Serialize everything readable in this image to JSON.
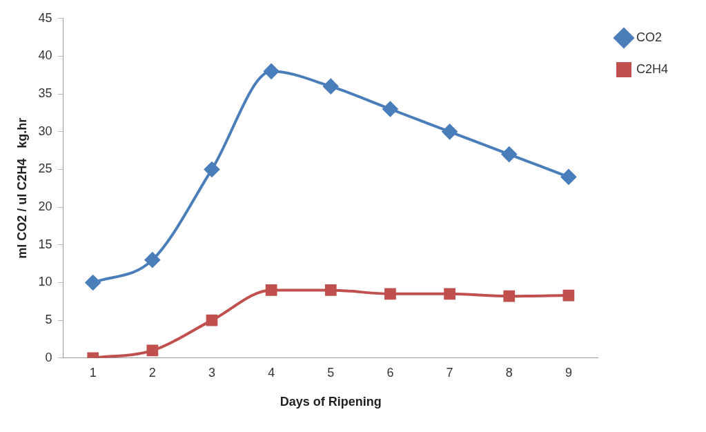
{
  "chart_data": {
    "type": "line",
    "xlabel": "Days of Ripening",
    "ylabel": "ml CO2 / ul C2H4   kg.hr",
    "categories": [
      "1",
      "2",
      "3",
      "4",
      "5",
      "6",
      "7",
      "8",
      "9"
    ],
    "series": [
      {
        "name": "CO2",
        "color": "#4a7ebb",
        "marker": "diamond",
        "values": [
          10,
          13,
          25,
          38,
          36,
          33,
          30,
          27,
          24
        ]
      },
      {
        "name": "C2H4",
        "color": "#c0504d",
        "marker": "square",
        "values": [
          0,
          1,
          5,
          9,
          9,
          8.5,
          8.5,
          8.2,
          8.3
        ]
      }
    ],
    "ylim": [
      0,
      45
    ],
    "yticks": [
      0,
      5,
      10,
      15,
      20,
      25,
      30,
      35,
      40,
      45
    ],
    "grid": false,
    "legend": "top right",
    "line_style": "solid"
  }
}
